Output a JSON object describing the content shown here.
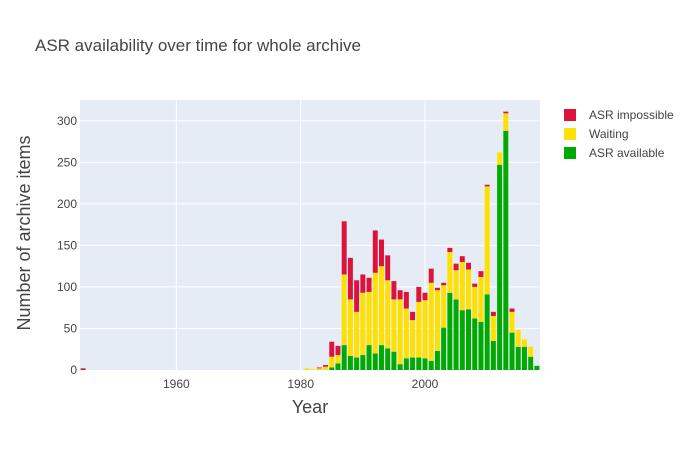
{
  "chart_data": {
    "type": "bar",
    "stacked": true,
    "title": "ASR availability over time for whole archive",
    "xlabel": "Year",
    "ylabel": "Number of archive items",
    "xlim": [
      1944.5,
      2018.5
    ],
    "ylim": [
      0,
      325
    ],
    "x_ticks": [
      1960,
      1980,
      2000
    ],
    "y_ticks": [
      0,
      50,
      100,
      150,
      200,
      250,
      300
    ],
    "grid": true,
    "legend_position": "top-right",
    "plot_background": "#e5ecf6",
    "x": [
      1945,
      1981,
      1982,
      1983,
      1984,
      1985,
      1986,
      1987,
      1988,
      1989,
      1990,
      1991,
      1992,
      1993,
      1994,
      1995,
      1996,
      1997,
      1998,
      1999,
      2000,
      2001,
      2002,
      2003,
      2004,
      2005,
      2006,
      2007,
      2008,
      2009,
      2010,
      2011,
      2012,
      2013,
      2014,
      2015,
      2016,
      2017,
      2018
    ],
    "series": [
      {
        "name": "ASR available",
        "color": "#00aa00",
        "values": [
          0,
          0,
          0,
          0,
          0,
          3,
          8,
          30,
          17,
          15,
          18,
          30,
          20,
          30,
          26,
          22,
          7,
          14,
          15,
          15,
          14,
          11,
          23,
          51,
          93,
          85,
          72,
          73,
          62,
          58,
          91,
          35,
          247,
          288,
          45,
          28,
          28,
          16,
          5
        ]
      },
      {
        "name": "Waiting",
        "color": "#ffe000",
        "values": [
          0,
          2,
          1,
          2,
          4,
          13,
          10,
          85,
          68,
          55,
          75,
          64,
          97,
          95,
          82,
          63,
          78,
          60,
          45,
          67,
          70,
          94,
          73,
          51,
          49,
          35,
          58,
          48,
          38,
          54,
          130,
          30,
          15,
          21,
          25,
          20,
          9,
          12,
          0
        ]
      },
      {
        "name": "ASR impossible",
        "color": "#dc143c",
        "values": [
          2,
          0,
          0,
          1,
          2,
          18,
          11,
          64,
          50,
          38,
          22,
          17,
          51,
          32,
          30,
          22,
          11,
          20,
          10,
          18,
          9,
          17,
          3,
          3,
          5,
          8,
          7,
          8,
          4,
          7,
          2,
          5,
          0,
          2,
          4,
          0,
          0,
          0,
          0
        ]
      }
    ]
  }
}
